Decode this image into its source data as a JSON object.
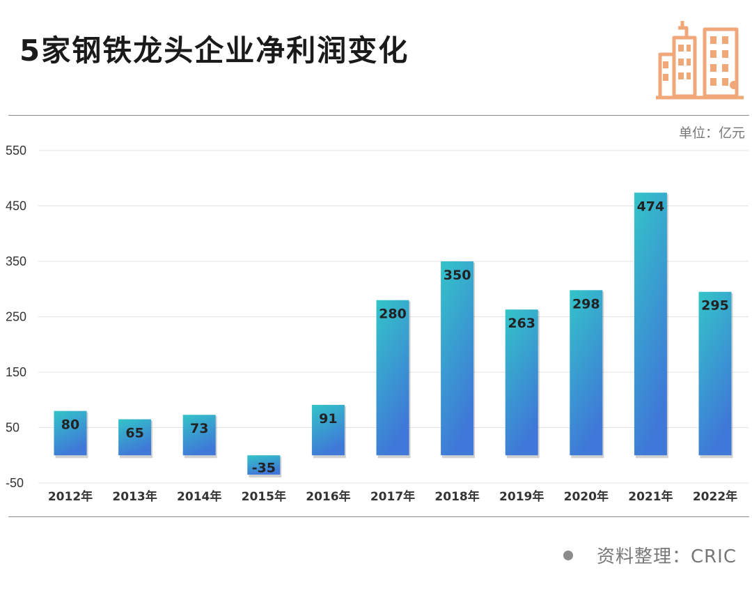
{
  "header": {
    "title": "5家钢铁龙头企业净利润变化"
  },
  "unit_label": "单位：亿元",
  "source_label": "资料整理：CRIC",
  "colors": {
    "bar_top": "#33c4c8",
    "bar_bottom": "#3f78d8",
    "grid": "#e3e3e3",
    "logo": "#f0a878"
  },
  "chart_data": {
    "type": "bar",
    "title": "5家钢铁龙头企业净利润变化",
    "ylabel": "单位：亿元",
    "xlabel": "",
    "categories": [
      "2012年",
      "2013年",
      "2014年",
      "2015年",
      "2016年",
      "2017年",
      "2018年",
      "2019年",
      "2020年",
      "2021年",
      "2022年"
    ],
    "values": [
      80,
      65,
      73,
      -35,
      91,
      280,
      350,
      263,
      298,
      474,
      295
    ],
    "yticks": [
      550,
      450,
      350,
      250,
      150,
      50,
      -50
    ],
    "ylim": [
      -50,
      550
    ],
    "grid": true
  }
}
